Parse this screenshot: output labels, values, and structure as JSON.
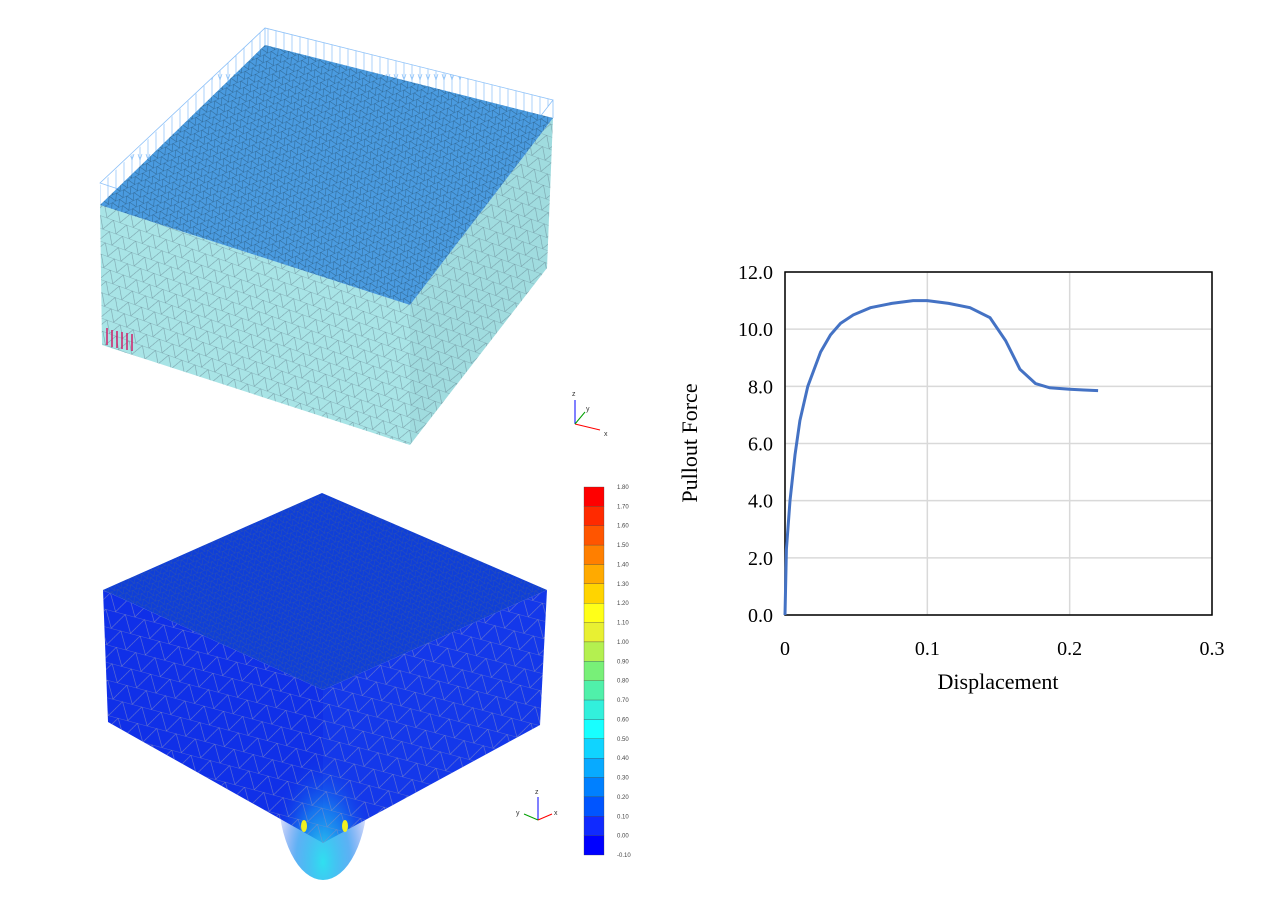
{
  "model_top": {
    "triad": {
      "z": "z",
      "y": "y",
      "x": "x"
    },
    "colors": {
      "top_face": "#4a9be0",
      "side_face": "#a8e4e6",
      "load_arrows": "#5aa8f0",
      "anchor": "#d0206a"
    }
  },
  "model_bottom": {
    "triad": {
      "z": "z",
      "y": "y",
      "x": "x"
    },
    "colors": {
      "face": "#1030e8",
      "top_face": "#0f3fd8"
    },
    "colorbar": {
      "labels": [
        "1.80",
        "1.70",
        "1.60",
        "1.50",
        "1.40",
        "1.30",
        "1.20",
        "1.10",
        "1.00",
        "0.90",
        "0.80",
        "0.70",
        "0.60",
        "0.50",
        "0.40",
        "0.30",
        "0.20",
        "0.10",
        "0.00",
        "-0.10"
      ],
      "colors": [
        "#ff0000",
        "#ff2a00",
        "#ff5500",
        "#ff7f00",
        "#ffaa00",
        "#ffd400",
        "#ffff18",
        "#e8f032",
        "#b4f050",
        "#78f078",
        "#50f0aa",
        "#32f0dc",
        "#18ffff",
        "#10d4ff",
        "#08aaff",
        "#0080ff",
        "#0055ff",
        "#102aff",
        "#0000ff"
      ]
    }
  },
  "chart_data": {
    "type": "line",
    "title": "",
    "xlabel": "Displacement",
    "ylabel": "Pullout Force",
    "xlim": [
      0,
      0.3
    ],
    "ylim": [
      0,
      12
    ],
    "xticks": [
      "0",
      "0.1",
      "0.2",
      "0.3"
    ],
    "yticks": [
      "0.0",
      "2.0",
      "4.0",
      "6.0",
      "8.0",
      "10.0",
      "12.0"
    ],
    "grid": true,
    "series": [
      {
        "name": "Pullout Force",
        "color": "#4472c4",
        "x": [
          0,
          0.001,
          0.0035,
          0.007,
          0.0105,
          0.016,
          0.025,
          0.032,
          0.039,
          0.048,
          0.06,
          0.075,
          0.09,
          0.1,
          0.115,
          0.13,
          0.144,
          0.155,
          0.165,
          0.176,
          0.186,
          0.2,
          0.21,
          0.22
        ],
        "y": [
          0,
          2.3,
          4.0,
          5.6,
          6.8,
          8.0,
          9.2,
          9.8,
          10.2,
          10.5,
          10.75,
          10.9,
          11.0,
          11.0,
          10.9,
          10.75,
          10.4,
          9.6,
          8.6,
          8.1,
          7.95,
          7.9,
          7.87,
          7.85
        ]
      }
    ]
  }
}
